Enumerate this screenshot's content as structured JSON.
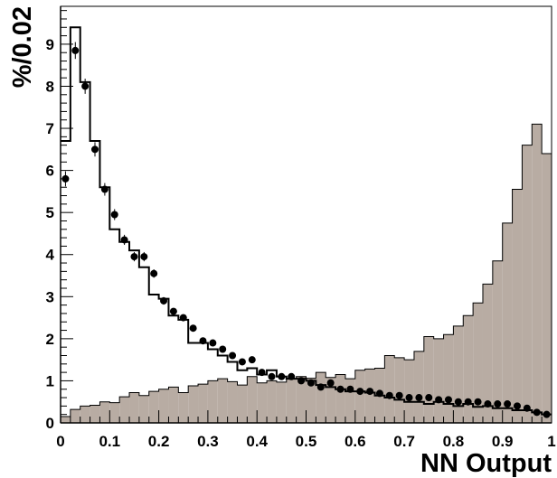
{
  "chart_data": {
    "type": "histogram",
    "xlabel": "NN Output",
    "ylabel": "%/0.02",
    "xlim": [
      0,
      1
    ],
    "ylim": [
      0,
      9.9
    ],
    "grid": false,
    "legend": "none",
    "x_ticks": [
      "0",
      "0.1",
      "0.2",
      "0.3",
      "0.4",
      "0.5",
      "0.6",
      "0.7",
      "0.8",
      "0.9",
      "1"
    ],
    "y_ticks": [
      "0",
      "1",
      "2",
      "3",
      "4",
      "5",
      "6",
      "7",
      "8",
      "9"
    ],
    "bin_width": 0.02,
    "bin_edges_start": 0,
    "series": [
      {
        "style": "filled-histogram",
        "color": "#b8aca3",
        "values": [
          0.15,
          0.32,
          0.4,
          0.42,
          0.5,
          0.48,
          0.62,
          0.72,
          0.65,
          0.75,
          0.8,
          0.85,
          0.72,
          0.88,
          0.92,
          1.0,
          1.05,
          0.98,
          0.9,
          1.1,
          0.95,
          1.0,
          0.97,
          1.05,
          1.1,
          1.06,
          1.2,
          1.08,
          1.15,
          1.05,
          1.25,
          1.28,
          1.3,
          1.6,
          1.55,
          1.5,
          1.7,
          2.05,
          2.0,
          2.1,
          2.3,
          2.55,
          2.85,
          3.3,
          3.85,
          4.75,
          5.55,
          6.6,
          7.1,
          6.4
        ]
      },
      {
        "style": "line-histogram",
        "color": "#000000",
        "values": [
          6.7,
          9.4,
          8.1,
          6.7,
          5.6,
          4.6,
          4.3,
          4.1,
          3.7,
          3.05,
          2.95,
          2.55,
          2.45,
          1.9,
          1.9,
          1.75,
          1.6,
          1.45,
          1.25,
          1.3,
          1.15,
          1.25,
          1.1,
          1.05,
          1.05,
          1.0,
          0.9,
          0.85,
          0.8,
          0.75,
          0.75,
          0.72,
          0.65,
          0.6,
          0.55,
          0.5,
          0.5,
          0.45,
          0.5,
          0.45,
          0.4,
          0.45,
          0.38,
          0.4,
          0.35,
          0.35,
          0.3,
          0.3,
          0.25,
          0.2
        ]
      },
      {
        "style": "markers",
        "color": "#000000",
        "x": [
          0.01,
          0.03,
          0.05,
          0.07,
          0.09,
          0.11,
          0.13,
          0.15,
          0.17,
          0.19,
          0.21,
          0.23,
          0.25,
          0.27,
          0.29,
          0.31,
          0.33,
          0.35,
          0.37,
          0.39,
          0.41,
          0.43,
          0.45,
          0.47,
          0.49,
          0.51,
          0.53,
          0.55,
          0.57,
          0.59,
          0.61,
          0.63,
          0.65,
          0.67,
          0.69,
          0.71,
          0.73,
          0.75,
          0.77,
          0.79,
          0.81,
          0.83,
          0.85,
          0.87,
          0.89,
          0.91,
          0.93,
          0.95,
          0.97,
          0.99
        ],
        "y": [
          5.8,
          8.85,
          8.0,
          6.5,
          5.55,
          4.95,
          4.35,
          3.95,
          3.95,
          3.55,
          2.9,
          2.65,
          2.5,
          2.25,
          1.95,
          1.9,
          1.75,
          1.6,
          1.45,
          1.5,
          1.2,
          1.1,
          1.1,
          1.1,
          1.0,
          0.95,
          0.85,
          0.95,
          0.8,
          0.8,
          0.75,
          0.75,
          0.7,
          0.65,
          0.65,
          0.6,
          0.6,
          0.6,
          0.55,
          0.55,
          0.5,
          0.5,
          0.5,
          0.45,
          0.45,
          0.45,
          0.4,
          0.35,
          0.25,
          0.2
        ],
        "errors": [
          0.18,
          0.2,
          0.18,
          0.17,
          0.15,
          0.13,
          0.12,
          0.11,
          0.11,
          0.1,
          0.09,
          0.08,
          0.08,
          0.07,
          0.07,
          0.06,
          0.06,
          0.06,
          0.05,
          0.05,
          0.05,
          0.05,
          0.05,
          0.05,
          0.04,
          0.04,
          0.04,
          0.04,
          0.04,
          0.04,
          0.04,
          0.04,
          0.03,
          0.03,
          0.03,
          0.03,
          0.03,
          0.03,
          0.03,
          0.03,
          0.03,
          0.03,
          0.03,
          0.03,
          0.03,
          0.03,
          0.03,
          0.03,
          0.03,
          0.03
        ]
      }
    ]
  }
}
